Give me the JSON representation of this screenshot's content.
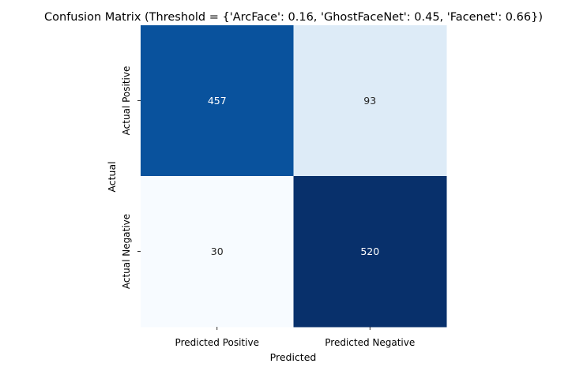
{
  "chart_data": {
    "type": "heatmap",
    "title": "Confusion Matrix (Threshold = {'ArcFace': 0.16, 'GhostFaceNet': 0.45, 'Facenet': 0.66})",
    "xlabel": "Predicted",
    "ylabel": "Actual",
    "x_categories": [
      "Predicted Positive",
      "Predicted Negative"
    ],
    "y_categories": [
      "Actual Positive",
      "Actual Negative"
    ],
    "values": [
      [
        457,
        93
      ],
      [
        30,
        520
      ]
    ],
    "colormap": "Blues",
    "color_range": [
      30,
      520
    ],
    "colorbar": false,
    "annotations": true
  }
}
